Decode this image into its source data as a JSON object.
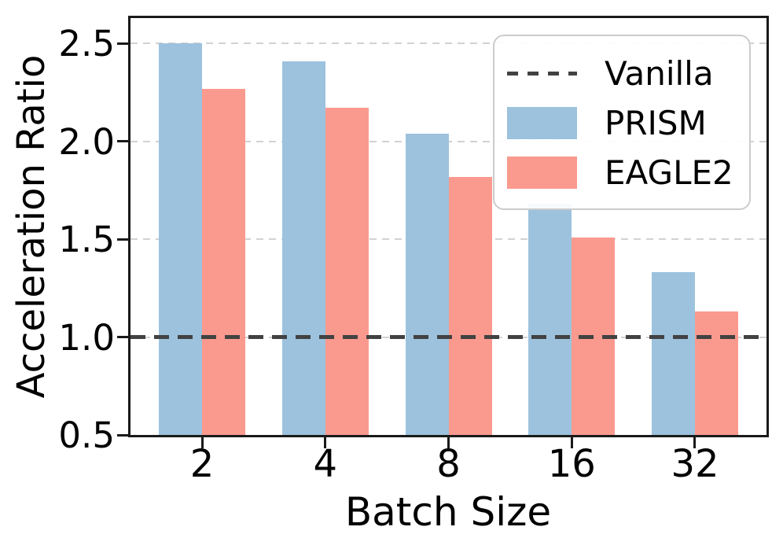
{
  "chart_data": {
    "type": "bar",
    "title": "",
    "xlabel": "Batch Size",
    "ylabel": "Acceleration Ratio",
    "categories": [
      "2",
      "4",
      "8",
      "16",
      "32"
    ],
    "series": [
      {
        "name": "PRISM",
        "color": "#9cc2de",
        "values": [
          2.5,
          2.41,
          2.04,
          1.68,
          1.33
        ]
      },
      {
        "name": "EAGLE2",
        "color": "#fa9a8e",
        "values": [
          2.27,
          2.17,
          1.82,
          1.51,
          1.13
        ]
      }
    ],
    "reference_line": {
      "label": "Vanilla",
      "value": 1.0,
      "color": "#424242",
      "style": "dashed"
    },
    "ylim": [
      0.5,
      2.63
    ],
    "yticks": [
      0.5,
      1.0,
      1.5,
      2.0,
      2.5
    ],
    "ytick_labels": [
      "0.5",
      "1.0",
      "1.5",
      "2.0",
      "2.5"
    ],
    "grid": {
      "axis": "y",
      "style": "dashed",
      "color": "#d2d2d2",
      "on_ticks": [
        1.0,
        1.5,
        2.0,
        2.5
      ]
    },
    "legend": {
      "position": "upper right",
      "entries": [
        "Vanilla",
        "PRISM",
        "EAGLE2"
      ]
    },
    "colors": {
      "axis": "#1a1a1a",
      "text": "#000000",
      "background": "#ffffff"
    }
  }
}
